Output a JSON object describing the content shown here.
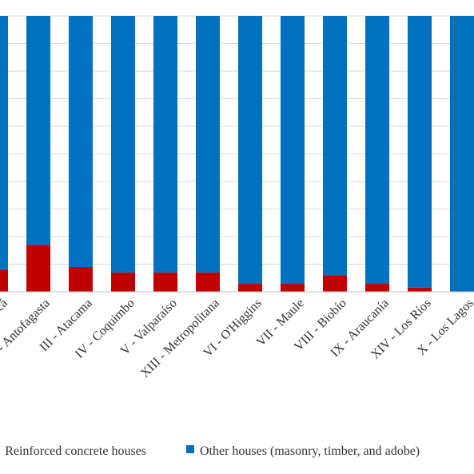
{
  "chart_data": {
    "type": "bar",
    "stacked": true,
    "percent": true,
    "categories": [
      "I - Tarapacá",
      "II - Antofagasta",
      "III - Atacama",
      "IV - Coquimbo",
      "V - Valparaíso",
      "XIII - Metropolitana",
      "VI - O'Higgins",
      "VII - Maule",
      "VIII - Biobío",
      "IX - Araucanía",
      "XIV - Los Ríos",
      "X - Los Lagos"
    ],
    "series": [
      {
        "name": "Reinforced concrete houses",
        "color": "#c00000",
        "values": [
          8,
          17,
          9,
          7,
          7,
          7,
          3,
          3,
          6,
          3,
          1.5,
          0
        ]
      },
      {
        "name": "Other houses (masonry, timber, and adobe)",
        "color": "#0070c0",
        "values": [
          92,
          83,
          91,
          93,
          93,
          93,
          97,
          97,
          94,
          97,
          98.5,
          100
        ]
      }
    ],
    "ylim": [
      0,
      100
    ],
    "grid": true,
    "legend_position": "bottom"
  }
}
